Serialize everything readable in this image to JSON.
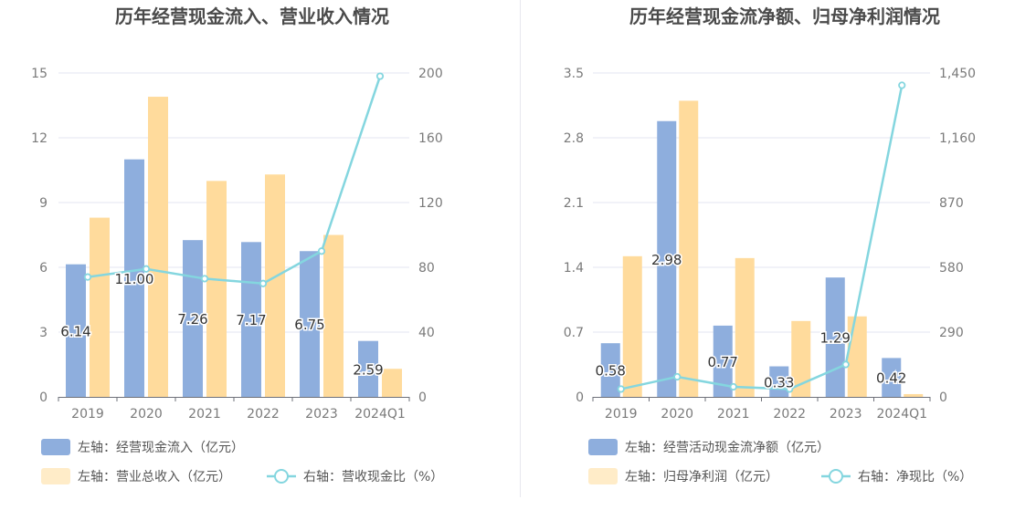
{
  "colors": {
    "bar_blue": "#8eaedd",
    "bar_orange": "#ffdb9c",
    "line_cyan": "#84d6df",
    "legend_orange": "#ffecc8",
    "grid": "#e3e6f0",
    "axis_text": "#7a7a7a",
    "title_text": "#4a4a4a",
    "label_text": "#333333"
  },
  "chart_data": [
    {
      "type": "bar",
      "title": "历年经营现金流入、营业收入情况",
      "categories": [
        "2019",
        "2020",
        "2021",
        "2022",
        "2023",
        "2024Q1"
      ],
      "y_left": {
        "range": [
          0,
          15
        ],
        "ticks": [
          "0",
          "3",
          "6",
          "9",
          "12",
          "15"
        ]
      },
      "y_right": {
        "range": [
          0,
          200
        ],
        "ticks": [
          "0",
          "40",
          "80",
          "120",
          "160",
          "200"
        ]
      },
      "series": [
        {
          "name": "左轴：经营现金流入（亿元）",
          "kind": "bar",
          "axis": "left",
          "values": [
            6.14,
            11.0,
            7.26,
            7.17,
            6.75,
            2.59
          ],
          "labels": [
            "6.14",
            "11.00",
            "7.26",
            "7.17",
            "6.75",
            "2.59"
          ]
        },
        {
          "name": "左轴：营业总收入（亿元）",
          "kind": "bar",
          "axis": "left",
          "values": [
            8.3,
            13.9,
            10.0,
            10.3,
            7.5,
            1.3
          ]
        },
        {
          "name": "右轴：营收现金比（%）",
          "kind": "line",
          "axis": "right",
          "values": [
            74,
            79,
            73,
            70,
            90,
            198
          ]
        }
      ]
    },
    {
      "type": "bar",
      "title": "历年经营现金流净额、归母净利润情况",
      "categories": [
        "2019",
        "2020",
        "2021",
        "2022",
        "2023",
        "2024Q1"
      ],
      "y_left": {
        "range": [
          0,
          3.5
        ],
        "ticks": [
          "0",
          "0.7",
          "1.4",
          "2.1",
          "2.8",
          "3.5"
        ]
      },
      "y_right": {
        "range": [
          0,
          1450
        ],
        "ticks": [
          "0",
          "290",
          "580",
          "870",
          "1,160",
          "1,450"
        ]
      },
      "series": [
        {
          "name": "左轴：经营活动现金流净额（亿元）",
          "kind": "bar",
          "axis": "left",
          "values": [
            0.58,
            2.98,
            0.77,
            0.33,
            1.29,
            0.42
          ],
          "labels": [
            "0.58",
            "2.98",
            "0.77",
            "0.33",
            "1.29",
            "0.42"
          ]
        },
        {
          "name": "左轴：归母净利润（亿元）",
          "kind": "bar",
          "axis": "left",
          "values": [
            1.52,
            3.2,
            1.5,
            0.82,
            0.87,
            0.03
          ]
        },
        {
          "name": "右轴：净现比（%）",
          "kind": "line",
          "axis": "right",
          "values": [
            35,
            90,
            45,
            35,
            145,
            1395
          ]
        }
      ]
    }
  ]
}
